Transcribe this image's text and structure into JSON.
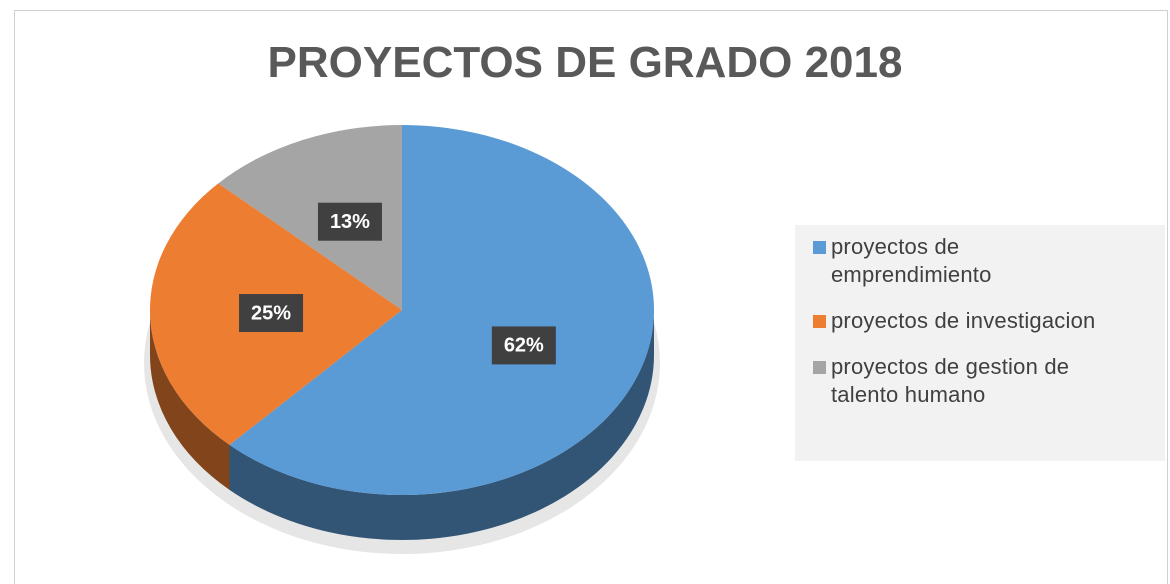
{
  "chart_data": {
    "type": "pie",
    "title": "PROYECTOS DE GRADO 2018",
    "categories": [
      "proyectos de emprendimiento",
      "proyectos de investigacion",
      "proyectos de gestion de talento humano"
    ],
    "values": [
      62,
      25,
      13
    ],
    "value_labels": [
      "62%",
      "25%",
      "13%"
    ],
    "colors": [
      "#5b9bd5",
      "#ed7d31",
      "#a5a5a5"
    ],
    "legend": "right"
  }
}
